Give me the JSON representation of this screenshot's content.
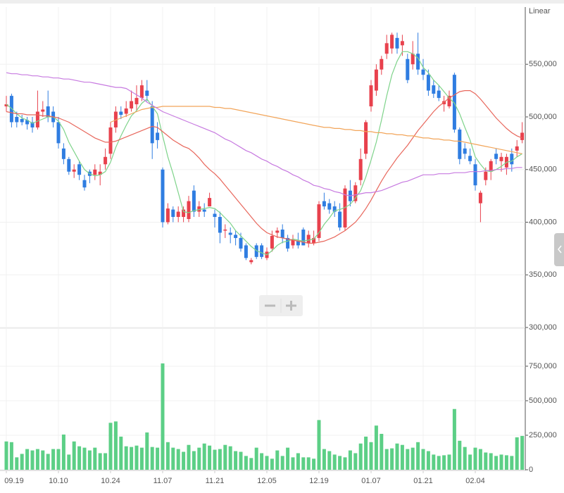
{
  "chart_data": {
    "type": "candlestick",
    "scale_label": "Linear",
    "categories": [
      "09.19",
      null,
      null,
      null,
      null,
      null,
      null,
      null,
      null,
      null,
      "10.10",
      null,
      null,
      null,
      null,
      null,
      null,
      null,
      null,
      null,
      "10.24",
      null,
      null,
      null,
      null,
      null,
      null,
      null,
      null,
      null,
      "11.07",
      null,
      null,
      null,
      null,
      null,
      null,
      null,
      null,
      null,
      "11.21",
      null,
      null,
      null,
      null,
      null,
      null,
      null,
      null,
      null,
      "12.05",
      null,
      null,
      null,
      null,
      null,
      null,
      null,
      null,
      null,
      "12.19",
      null,
      null,
      null,
      null,
      null,
      null,
      null,
      null,
      null,
      "01.07",
      null,
      null,
      null,
      null,
      null,
      null,
      null,
      null,
      null,
      "01.21",
      null,
      null,
      null,
      null,
      null,
      null,
      null,
      null,
      null,
      "02.04",
      null,
      null,
      null,
      null,
      null,
      null,
      null,
      null,
      null
    ],
    "open": [
      510000,
      520000,
      500000,
      498000,
      497000,
      495000,
      490000,
      505000,
      510000,
      505000,
      495000,
      470000,
      460000,
      448000,
      455000,
      440000,
      448000,
      445000,
      445000,
      455000,
      465000,
      490000,
      505000,
      503000,
      508000,
      512000,
      518000,
      525000,
      510000,
      485000,
      450000,
      400000,
      412000,
      405000,
      405000,
      403000,
      430000,
      410000,
      412000,
      415000,
      408000,
      405000,
      392000,
      390000,
      388000,
      385000,
      378000,
      362000,
      378000,
      378000,
      366000,
      375000,
      390000,
      393000,
      385000,
      378000,
      382000,
      393000,
      380000,
      380000,
      385000,
      420000,
      418000,
      415000,
      410000,
      395000,
      430000,
      420000,
      440000,
      465000,
      510000,
      525000,
      545000,
      560000,
      565000,
      575000,
      568000,
      555000,
      550000,
      560000,
      545000,
      540000,
      530000,
      525000,
      512000,
      510000,
      540000,
      488000,
      470000,
      463000,
      455000,
      418000,
      440000,
      448000,
      465000,
      458000,
      452000,
      465000,
      468000,
      478000
    ],
    "high": [
      520000,
      522000,
      505000,
      502000,
      500000,
      500000,
      525000,
      515000,
      525000,
      510000,
      500000,
      475000,
      462000,
      455000,
      458000,
      445000,
      450000,
      455000,
      455000,
      470000,
      495000,
      510000,
      510000,
      515000,
      525000,
      530000,
      535000,
      535000,
      515000,
      495000,
      452000,
      418000,
      415000,
      415000,
      415000,
      425000,
      435000,
      420000,
      418000,
      428000,
      412000,
      410000,
      398000,
      395000,
      392000,
      390000,
      380000,
      366000,
      380000,
      380000,
      376000,
      392000,
      395000,
      398000,
      388000,
      388000,
      390000,
      395000,
      392000,
      392000,
      420000,
      428000,
      422000,
      420000,
      418000,
      435000,
      440000,
      438000,
      470000,
      497000,
      535000,
      550000,
      558000,
      578000,
      580000,
      580000,
      578000,
      560000,
      572000,
      580000,
      555000,
      545000,
      535000,
      530000,
      520000,
      525000,
      542000,
      490000,
      475000,
      470000,
      460000,
      430000,
      452000,
      460000,
      470000,
      466000,
      465000,
      470000,
      478000,
      495000
    ],
    "low": [
      505000,
      490000,
      490000,
      492000,
      488000,
      485000,
      488000,
      500000,
      495000,
      490000,
      470000,
      455000,
      445000,
      442000,
      440000,
      430000,
      437000,
      440000,
      435000,
      450000,
      460000,
      485000,
      498000,
      500000,
      505000,
      505000,
      515000,
      515000,
      460000,
      470000,
      395000,
      398000,
      400000,
      400000,
      400000,
      400000,
      405000,
      405000,
      405000,
      415000,
      395000,
      380000,
      385000,
      380000,
      378000,
      372000,
      364000,
      360000,
      365000,
      365000,
      364000,
      372000,
      385000,
      380000,
      372000,
      375000,
      375000,
      378000,
      376000,
      378000,
      382000,
      412000,
      408000,
      405000,
      392000,
      392000,
      415000,
      418000,
      435000,
      460000,
      505000,
      520000,
      540000,
      555000,
      560000,
      560000,
      558000,
      532000,
      545000,
      540000,
      535000,
      520000,
      518000,
      515000,
      505000,
      508000,
      485000,
      455000,
      460000,
      455000,
      430000,
      400000,
      435000,
      440000,
      455000,
      448000,
      445000,
      448000,
      462000,
      475000
    ],
    "close": [
      512000,
      495000,
      495000,
      495000,
      493000,
      490000,
      505000,
      507000,
      500000,
      495000,
      475000,
      460000,
      448000,
      450000,
      445000,
      433000,
      444000,
      450000,
      448000,
      462000,
      490000,
      505000,
      502000,
      508000,
      515000,
      518000,
      530000,
      520000,
      475000,
      478000,
      400000,
      413000,
      405000,
      410000,
      412000,
      420000,
      410000,
      415000,
      410000,
      423000,
      405000,
      390000,
      393000,
      388000,
      385000,
      375000,
      366000,
      364000,
      367000,
      367000,
      372000,
      387000,
      392000,
      385000,
      375000,
      383000,
      378000,
      378000,
      388000,
      385000,
      417000,
      415000,
      412000,
      410000,
      395000,
      432000,
      420000,
      435000,
      460000,
      495000,
      530000,
      545000,
      555000,
      570000,
      578000,
      565000,
      572000,
      535000,
      560000,
      545000,
      540000,
      525000,
      522000,
      518000,
      515000,
      520000,
      488000,
      460000,
      465000,
      458000,
      435000,
      428000,
      448000,
      458000,
      460000,
      462000,
      462000,
      455000,
      472000,
      485000
    ],
    "up_color": "#e8414d",
    "down_color": "#2f7de1",
    "ylim": [
      300000,
      603000
    ],
    "yticks": [
      {
        "value": 300000,
        "label": "300,000"
      },
      {
        "value": 350000,
        "label": "350,000"
      },
      {
        "value": 400000,
        "label": "400,000"
      },
      {
        "value": 450000,
        "label": "450,000"
      },
      {
        "value": 500000,
        "label": "500,000"
      },
      {
        "value": 550000,
        "label": "550,000"
      }
    ],
    "lines": [
      {
        "color": "#7ed38a",
        "values": [
          512000,
          508000,
          503000,
          499000,
          497000,
          494000,
          496000,
          498000,
          500000,
          500000,
          496000,
          488000,
          476000,
          467000,
          458000,
          450000,
          446000,
          444000,
          445000,
          448000,
          457000,
          471000,
          482000,
          492000,
          501000,
          506000,
          513000,
          517000,
          510000,
          503000,
          482000,
          462000,
          446000,
          428000,
          410000,
          409000,
          411000,
          412000,
          413000,
          414000,
          413000,
          409000,
          404000,
          399000,
          392000,
          387000,
          382000,
          377000,
          373000,
          371000,
          369000,
          373000,
          378000,
          381000,
          382000,
          384000,
          383000,
          382000,
          383000,
          384000,
          390000,
          398000,
          404000,
          411000,
          412000,
          414000,
          417000,
          423000,
          430000,
          443000,
          459000,
          476000,
          497000,
          520000,
          540000,
          553000,
          562000,
          562000,
          560000,
          556000,
          547000,
          542000,
          535000,
          530000,
          524000,
          518000,
          513000,
          503000,
          490000,
          478000,
          462000,
          455000,
          449000,
          448000,
          450000,
          453000,
          457000,
          458000,
          462000,
          465000
        ]
      },
      {
        "color": "#e8675c",
        "values": [
          505000,
          504000,
          503000,
          503000,
          502000,
          502000,
          502000,
          501000,
          501000,
          500000,
          499000,
          497000,
          495000,
          492000,
          489000,
          486000,
          483000,
          480000,
          478000,
          476000,
          476000,
          477000,
          479000,
          481000,
          483000,
          485000,
          487000,
          489000,
          491000,
          490000,
          486000,
          482000,
          478000,
          475000,
          472000,
          470000,
          466000,
          461000,
          455000,
          450000,
          446000,
          441000,
          435000,
          429000,
          423000,
          417000,
          411000,
          405000,
          399000,
          394000,
          390000,
          388000,
          386000,
          385000,
          384000,
          383000,
          382000,
          381000,
          380000,
          380000,
          381000,
          382000,
          384000,
          386000,
          389000,
          392000,
          396000,
          400000,
          406000,
          413000,
          421000,
          430000,
          439000,
          447000,
          454000,
          461000,
          467000,
          473000,
          480000,
          487000,
          493000,
          499000,
          505000,
          510000,
          514000,
          518000,
          521000,
          524000,
          525000,
          525000,
          522000,
          517000,
          511000,
          505000,
          499000,
          494000,
          489000,
          485000,
          482000,
          480000
        ]
      },
      {
        "color": "#f2a55a",
        "values": [
          null,
          null,
          null,
          null,
          null,
          null,
          null,
          null,
          null,
          null,
          null,
          null,
          null,
          null,
          null,
          null,
          null,
          null,
          null,
          null,
          495000,
          497000,
          499000,
          501000,
          503000,
          505000,
          507000,
          508000,
          509000,
          509000,
          510000,
          510000,
          510000,
          510000,
          510000,
          510000,
          510000,
          510000,
          510000,
          510000,
          509000,
          509000,
          508000,
          508000,
          507000,
          506000,
          505000,
          504000,
          503000,
          502000,
          501000,
          500000,
          499000,
          498000,
          497000,
          496000,
          495000,
          494000,
          493000,
          492000,
          491000,
          490000,
          490000,
          489000,
          489000,
          488000,
          488000,
          487000,
          487000,
          486000,
          486000,
          485000,
          485000,
          484000,
          484000,
          483000,
          483000,
          482000,
          482000,
          481000,
          480000,
          480000,
          479000,
          479000,
          478000,
          478000,
          477000,
          477000,
          476000,
          475000,
          474000,
          473000,
          472000,
          471000,
          470000,
          469000,
          468000,
          467000,
          466000,
          465000
        ]
      },
      {
        "color": "#c77ae0",
        "values": [
          542000,
          541000,
          541000,
          540000,
          540000,
          539000,
          539000,
          538000,
          538000,
          537000,
          537000,
          536000,
          536000,
          535000,
          534000,
          533000,
          533000,
          532000,
          531000,
          530000,
          529000,
          528000,
          528000,
          527000,
          524000,
          521000,
          518000,
          514000,
          511000,
          508000,
          505000,
          503000,
          501000,
          499000,
          497000,
          495000,
          493000,
          491000,
          489000,
          487000,
          485000,
          482000,
          479000,
          477000,
          474000,
          471000,
          468000,
          466000,
          463000,
          460000,
          458000,
          455000,
          453000,
          450000,
          448000,
          445000,
          443000,
          440000,
          438000,
          435000,
          434000,
          432000,
          431000,
          429000,
          428000,
          426000,
          425000,
          426000,
          427000,
          428000,
          428000,
          429000,
          430000,
          432000,
          434000,
          436000,
          438000,
          439000,
          441000,
          443000,
          445000,
          445000,
          445000,
          446000,
          446000,
          446000,
          447000,
          447000,
          447000,
          448000,
          448000,
          448000,
          449000,
          449000,
          450000,
          450000,
          451000,
          451000,
          452000,
          452000
        ]
      }
    ],
    "volume": {
      "color": "#5ccf86",
      "values": [
        205000,
        200000,
        90000,
        115000,
        150000,
        140000,
        150000,
        140000,
        115000,
        150000,
        150000,
        255000,
        110000,
        205000,
        170000,
        160000,
        140000,
        160000,
        120000,
        120000,
        340000,
        350000,
        240000,
        170000,
        165000,
        175000,
        160000,
        270000,
        165000,
        160000,
        770000,
        200000,
        160000,
        150000,
        130000,
        180000,
        135000,
        160000,
        190000,
        175000,
        145000,
        150000,
        180000,
        170000,
        135000,
        130000,
        100000,
        85000,
        160000,
        120000,
        100000,
        80000,
        140000,
        100000,
        160000,
        90000,
        120000,
        90000,
        90000,
        80000,
        360000,
        150000,
        135000,
        110000,
        100000,
        90000,
        140000,
        120000,
        190000,
        240000,
        200000,
        320000,
        260000,
        150000,
        155000,
        190000,
        180000,
        150000,
        160000,
        200000,
        150000,
        135000,
        110000,
        100000,
        105000,
        110000,
        440000,
        210000,
        165000,
        110000,
        160000,
        150000,
        125000,
        120000,
        100000,
        110000,
        105000,
        100000,
        235000,
        245000
      ],
      "ylim": [
        0,
        1015000
      ],
      "yticks": [
        0,
        {
          "value": 250000,
          "label": "250,000"
        },
        {
          "value": 500000,
          "label": "500,000"
        },
        {
          "value": 750000,
          "label": "750,000"
        }
      ]
    }
  }
}
